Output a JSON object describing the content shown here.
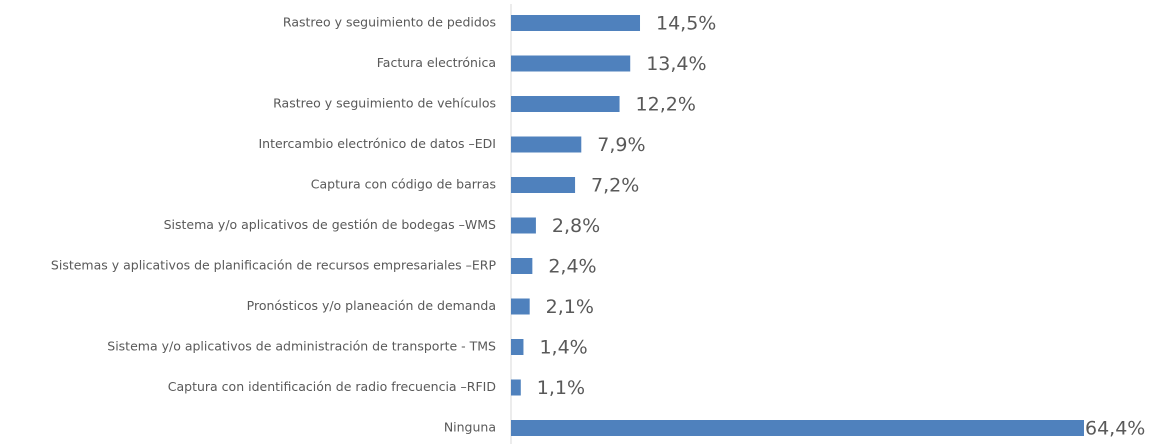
{
  "chart_data": {
    "type": "bar",
    "orientation": "horizontal",
    "categories": [
      "Rastreo y seguimiento de pedidos",
      "Factura electrónica",
      "Rastreo y seguimiento de vehículos",
      "Intercambio electrónico de datos –EDI",
      "Captura con código de barras",
      "Sistema y/o aplicativos de gestión de bodegas –WMS",
      "Sistemas y aplicativos de planificación de recursos empresariales –ERP",
      "Pronósticos y/o planeación de demanda",
      "Sistema y/o aplicativos de administración de transporte - TMS",
      "Captura con identificación de radio frecuencia –RFID",
      "Ninguna"
    ],
    "values": [
      14.5,
      13.4,
      12.2,
      7.9,
      7.2,
      2.8,
      2.4,
      2.1,
      1.4,
      1.1,
      64.4
    ],
    "value_labels": [
      "14,5%",
      "13,4%",
      "12,2%",
      "7,9%",
      "7,2%",
      "2,8%",
      "2,4%",
      "2,1%",
      "1,4%",
      "1,1%",
      "64,4%"
    ],
    "color": "#4f81bd"
  }
}
